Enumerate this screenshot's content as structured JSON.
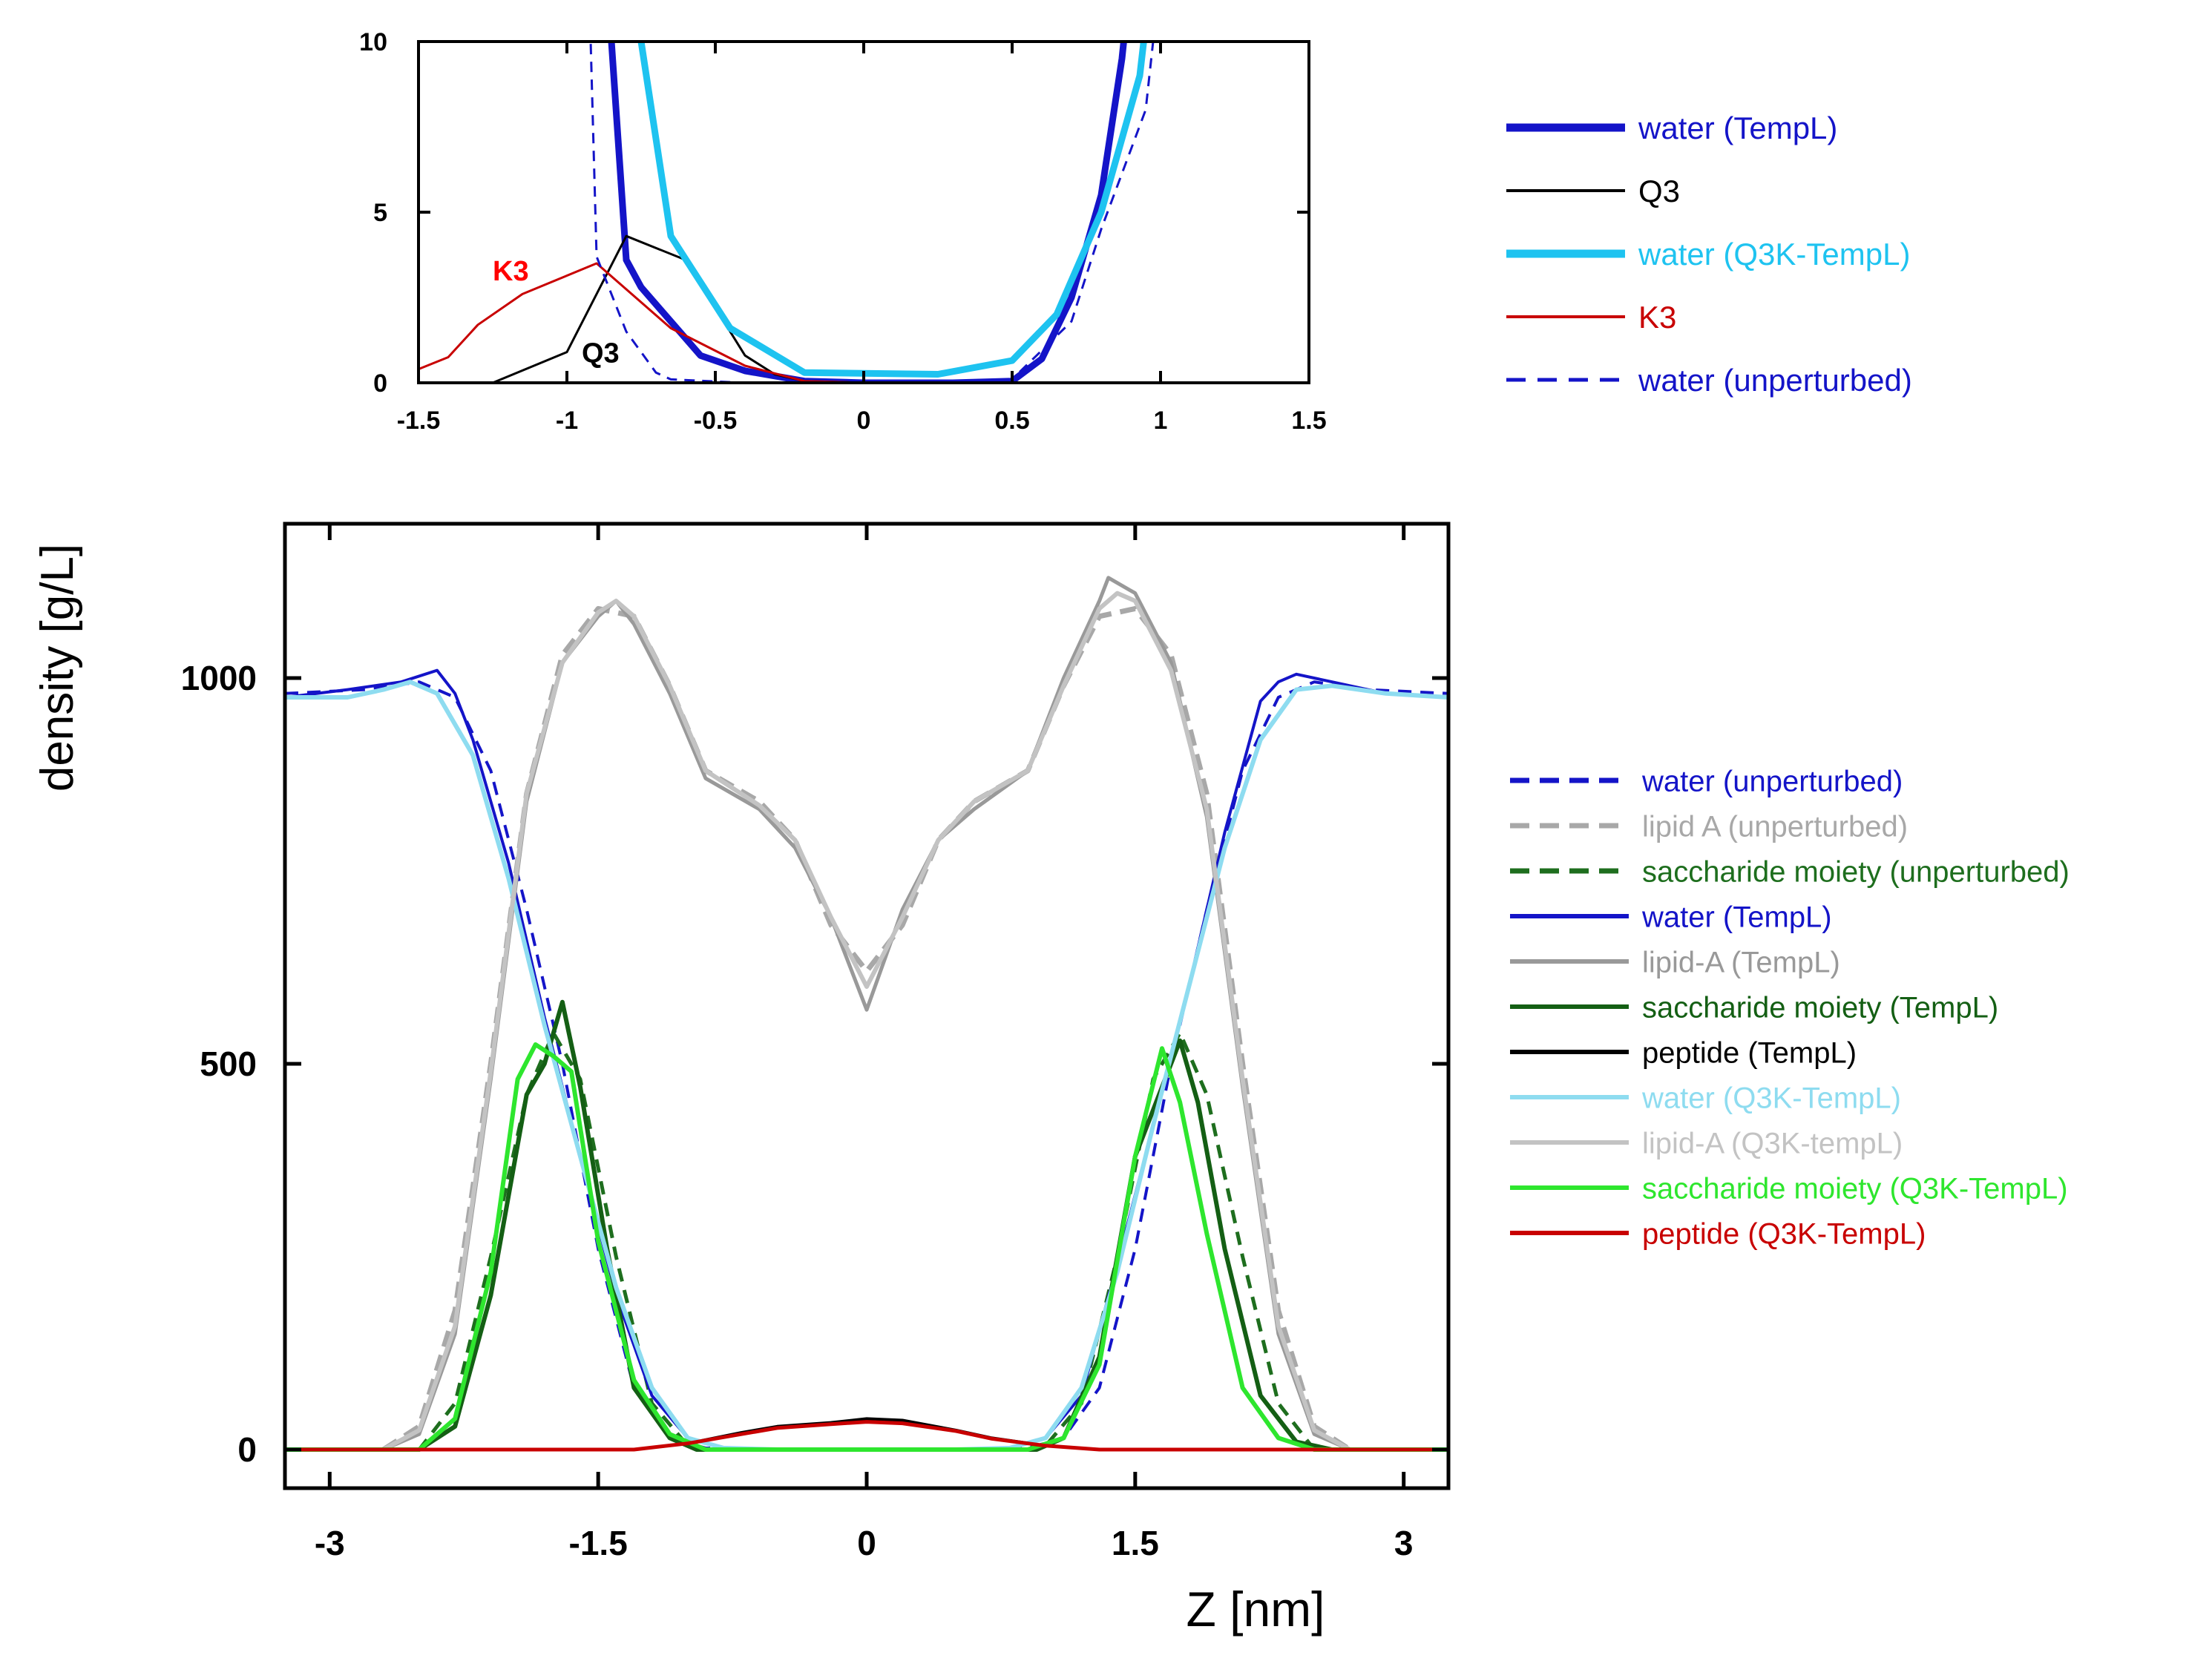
{
  "chart_data": [
    {
      "id": "inset",
      "type": "line",
      "title": "",
      "xlabel": "",
      "ylabel": "",
      "xlim": [
        -1.5,
        1.5
      ],
      "ylim": [
        0,
        10
      ],
      "xticks": [
        -1.5,
        -1,
        -0.5,
        0,
        0.5,
        1,
        1.5
      ],
      "xtick_labels": [
        "-1.5",
        "-1",
        "-0.5",
        "0",
        "0.5",
        "1",
        "1.5"
      ],
      "yticks": [
        0,
        5,
        10
      ],
      "ytick_labels": [
        "0",
        "5",
        "10"
      ],
      "grid": false,
      "legend_position": "right",
      "annotations": [
        {
          "text": "K3",
          "x": -1.25,
          "y": 3.0,
          "color": "#ff0000"
        },
        {
          "text": "Q3",
          "x": -0.95,
          "y": 0.6,
          "color": "#000000"
        }
      ],
      "series": [
        {
          "name": "water (TempL)",
          "color": "#1414c8",
          "width": 9,
          "dash": "",
          "x": [
            -0.88,
            -0.85,
            -0.8,
            -0.75,
            -0.65,
            -0.55,
            -0.4,
            -0.2,
            0,
            0.3,
            0.5,
            0.6,
            0.7,
            0.8,
            0.87,
            0.9
          ],
          "y": [
            12,
            10,
            3.6,
            2.8,
            1.8,
            0.8,
            0.35,
            0.05,
            0,
            0,
            0.05,
            0.7,
            2.5,
            5.5,
            9.5,
            12
          ]
        },
        {
          "name": "Q3",
          "color": "#000000",
          "width": 3,
          "dash": "",
          "x": [
            -1.5,
            -1.25,
            -1.0,
            -0.8,
            -0.6,
            -0.4,
            -0.3,
            -0.2,
            0,
            1.5
          ],
          "y": [
            0,
            0,
            0.9,
            4.3,
            3.6,
            0.8,
            0.25,
            0.05,
            0,
            0
          ]
        },
        {
          "name": "water (Q3K-TempL)",
          "color": "#1ec3f0",
          "width": 9,
          "dash": "",
          "x": [
            -0.8,
            -0.75,
            -0.65,
            -0.45,
            -0.2,
            0.25,
            0.5,
            0.65,
            0.8,
            0.93,
            0.97
          ],
          "y": [
            12,
            10,
            4.3,
            1.6,
            0.3,
            0.25,
            0.65,
            2.0,
            5.0,
            9.0,
            12
          ]
        },
        {
          "name": "K3",
          "color": "#c80000",
          "width": 3,
          "dash": "",
          "x": [
            -1.5,
            -1.4,
            -1.3,
            -1.15,
            -0.9,
            -0.65,
            -0.4,
            -0.2,
            0,
            1.5
          ],
          "y": [
            0.4,
            0.75,
            1.7,
            2.6,
            3.5,
            1.6,
            0.5,
            0.05,
            0,
            0
          ]
        },
        {
          "name": "water (unperturbed)",
          "color": "#1414c8",
          "width": 3,
          "dash": "14,10",
          "x": [
            -0.95,
            -0.92,
            -0.9,
            -0.8,
            -0.7,
            -0.65,
            -0.4,
            0,
            0.5,
            0.7,
            0.8,
            0.95,
            1.0
          ],
          "y": [
            12,
            10,
            3.7,
            1.5,
            0.3,
            0.1,
            0,
            0,
            0.1,
            1.8,
            4.5,
            8.0,
            12
          ]
        }
      ]
    },
    {
      "id": "main",
      "type": "line",
      "title": "",
      "xlabel": "Z [nm]",
      "ylabel": "density [g/L]",
      "xlim": [
        -3.25,
        3.25
      ],
      "ylim": [
        -50,
        1200
      ],
      "xticks": [
        -3,
        -1.5,
        0,
        1.5,
        3
      ],
      "xtick_labels": [
        "-3",
        "-1.5",
        "0",
        "1.5",
        "3"
      ],
      "yticks": [
        0,
        500,
        1000
      ],
      "ytick_labels": [
        "0",
        "500",
        "1000"
      ],
      "grid": false,
      "legend_position": "right",
      "series": [
        {
          "name": "water (unperturbed)",
          "color": "#1414c8",
          "width": 4,
          "dash": "18,12",
          "x": [
            -3.25,
            -2.8,
            -2.5,
            -2.3,
            -2.1,
            -1.9,
            -1.7,
            -1.5,
            -1.3,
            -1.1,
            -0.9,
            -0.5,
            0,
            0.5,
            0.9,
            1.1,
            1.3,
            1.5,
            1.7,
            1.9,
            2.1,
            2.3,
            2.5,
            2.8,
            3.25
          ],
          "y": [
            980,
            985,
            995,
            975,
            880,
            700,
            500,
            260,
            80,
            15,
            2,
            0,
            0,
            0,
            2,
            15,
            80,
            260,
            500,
            700,
            880,
            975,
            995,
            985,
            980
          ]
        },
        {
          "name": "lipid A (unperturbed)",
          "color": "#a8a8a8",
          "width": 7,
          "dash": "22,12",
          "x": [
            -2.7,
            -2.5,
            -2.3,
            -2.1,
            -1.9,
            -1.7,
            -1.5,
            -1.3,
            -1.1,
            -0.9,
            -0.6,
            -0.4,
            -0.2,
            0,
            0.2,
            0.4,
            0.6,
            0.9,
            1.1,
            1.3,
            1.5,
            1.7,
            1.9,
            2.1,
            2.3,
            2.5,
            2.7
          ],
          "y": [
            0,
            30,
            180,
            500,
            850,
            1030,
            1090,
            1080,
            990,
            880,
            840,
            790,
            680,
            620,
            680,
            790,
            840,
            880,
            990,
            1080,
            1090,
            1030,
            850,
            500,
            180,
            30,
            0
          ]
        },
        {
          "name": "saccharide moiety (unperturbed)",
          "color": "#1e6e1e",
          "width": 5,
          "dash": "18,12",
          "x": [
            -3.25,
            -2.5,
            -2.3,
            -2.1,
            -1.9,
            -1.75,
            -1.6,
            -1.4,
            -1.2,
            -1.0,
            -0.9,
            0,
            0.9,
            1.0,
            1.2,
            1.4,
            1.6,
            1.75,
            1.9,
            2.1,
            2.3,
            2.5,
            3.25
          ],
          "y": [
            0,
            0,
            60,
            250,
            460,
            540,
            480,
            250,
            60,
            5,
            0,
            0,
            0,
            5,
            60,
            250,
            480,
            540,
            460,
            250,
            60,
            0,
            0
          ]
        },
        {
          "name": "water (TempL)",
          "color": "#1414c8",
          "width": 4,
          "dash": "",
          "x": [
            -3.25,
            -2.9,
            -2.6,
            -2.4,
            -2.3,
            -2.2,
            -2.0,
            -1.8,
            -1.6,
            -1.4,
            -1.2,
            -1.0,
            -0.8,
            -0.5,
            0,
            0.5,
            0.8,
            1.0,
            1.2,
            1.4,
            1.6,
            1.8,
            2.0,
            2.2,
            2.3,
            2.4,
            2.6,
            2.9,
            3.25
          ],
          "y": [
            975,
            985,
            995,
            1010,
            980,
            920,
            760,
            560,
            380,
            200,
            70,
            15,
            2,
            0,
            0,
            0,
            2,
            15,
            70,
            240,
            420,
            600,
            800,
            970,
            995,
            1005,
            995,
            980,
            975
          ]
        },
        {
          "name": "lipid-A (TempL)",
          "color": "#999999",
          "width": 5,
          "dash": "",
          "x": [
            -2.7,
            -2.5,
            -2.3,
            -2.1,
            -1.9,
            -1.7,
            -1.5,
            -1.4,
            -1.3,
            -1.1,
            -0.9,
            -0.6,
            -0.4,
            -0.2,
            0,
            0.2,
            0.4,
            0.6,
            0.9,
            1.1,
            1.3,
            1.35,
            1.5,
            1.7,
            1.9,
            2.1,
            2.3,
            2.5,
            2.7
          ],
          "y": [
            0,
            20,
            150,
            480,
            840,
            1020,
            1080,
            1100,
            1070,
            980,
            870,
            830,
            780,
            690,
            570,
            700,
            790,
            830,
            880,
            1000,
            1100,
            1130,
            1110,
            1020,
            820,
            470,
            150,
            20,
            0
          ]
        },
        {
          "name": "saccharide moiety (TempL)",
          "color": "#145f14",
          "width": 6,
          "dash": "",
          "x": [
            -3.25,
            -2.5,
            -2.3,
            -2.1,
            -1.9,
            -1.8,
            -1.7,
            -1.6,
            -1.45,
            -1.3,
            -1.1,
            -0.95,
            0,
            0.95,
            1.1,
            1.3,
            1.5,
            1.6,
            1.75,
            1.85,
            2.0,
            2.2,
            2.4,
            2.6,
            3.25
          ],
          "y": [
            0,
            0,
            30,
            200,
            460,
            500,
            580,
            470,
            260,
            80,
            15,
            0,
            0,
            0,
            15,
            120,
            380,
            440,
            530,
            450,
            260,
            70,
            10,
            0,
            0
          ]
        },
        {
          "name": "peptide (TempL)",
          "color": "#000000",
          "width": 4,
          "dash": "",
          "x": [
            -3.25,
            -1.3,
            -1.0,
            -0.7,
            -0.5,
            -0.2,
            0,
            0.2,
            0.5,
            0.7,
            1.0,
            1.3,
            3.25
          ],
          "y": [
            0,
            0,
            8,
            22,
            30,
            35,
            40,
            38,
            25,
            15,
            5,
            0,
            0
          ]
        },
        {
          "name": "water (Q3K-TempL)",
          "color": "#8edcf0",
          "width": 6,
          "dash": "",
          "x": [
            -3.25,
            -2.9,
            -2.7,
            -2.55,
            -2.4,
            -2.2,
            -2.0,
            -1.8,
            -1.6,
            -1.4,
            -1.2,
            -1.0,
            -0.8,
            -0.5,
            0,
            0.5,
            0.8,
            1.0,
            1.2,
            1.4,
            1.6,
            1.8,
            2.0,
            2.2,
            2.4,
            2.6,
            2.9,
            3.25
          ],
          "y": [
            975,
            975,
            985,
            995,
            980,
            900,
            740,
            550,
            380,
            210,
            80,
            15,
            2,
            0,
            0,
            0,
            2,
            15,
            80,
            230,
            420,
            600,
            780,
            920,
            985,
            990,
            980,
            975
          ]
        },
        {
          "name": "lipid-A (Q3K-tempL)",
          "color": "#c3c3c3",
          "width": 6,
          "dash": "",
          "x": [
            -2.7,
            -2.5,
            -2.3,
            -2.1,
            -1.9,
            -1.7,
            -1.5,
            -1.4,
            -1.3,
            -1.1,
            -0.9,
            -0.6,
            -0.4,
            -0.2,
            0,
            0.2,
            0.4,
            0.6,
            0.9,
            1.1,
            1.3,
            1.4,
            1.5,
            1.7,
            1.9,
            2.1,
            2.3,
            2.5,
            2.7
          ],
          "y": [
            0,
            25,
            160,
            490,
            850,
            1020,
            1085,
            1100,
            1080,
            990,
            880,
            835,
            790,
            690,
            600,
            690,
            790,
            840,
            880,
            990,
            1090,
            1110,
            1100,
            1010,
            830,
            480,
            160,
            25,
            0
          ]
        },
        {
          "name": "saccharide moiety (Q3K-TempL)",
          "color": "#2ee62e",
          "width": 6,
          "dash": "",
          "x": [
            -3.25,
            -2.5,
            -2.3,
            -2.1,
            -1.95,
            -1.85,
            -1.75,
            -1.65,
            -1.5,
            -1.3,
            -1.1,
            -0.9,
            0,
            0.9,
            1.1,
            1.3,
            1.5,
            1.65,
            1.75,
            1.9,
            2.1,
            2.3,
            2.5,
            3.25
          ],
          "y": [
            0,
            0,
            40,
            230,
            480,
            525,
            510,
            490,
            270,
            90,
            20,
            0,
            0,
            0,
            15,
            110,
            380,
            520,
            450,
            280,
            80,
            15,
            0,
            0
          ]
        },
        {
          "name": "peptide (Q3K-TempL)",
          "color": "#c80000",
          "width": 5,
          "dash": "",
          "x": [
            -3.25,
            -1.3,
            -1.0,
            -0.7,
            -0.5,
            -0.2,
            0,
            0.2,
            0.5,
            0.7,
            1.0,
            1.3,
            3.25
          ],
          "y": [
            0,
            0,
            8,
            20,
            28,
            33,
            36,
            34,
            24,
            14,
            5,
            0,
            0
          ]
        }
      ]
    }
  ],
  "legends": {
    "inset": [
      {
        "label": "water (TempL)",
        "color": "#1414c8",
        "text_color": "#1414c8",
        "width": 11,
        "dash": ""
      },
      {
        "label": "Q3",
        "color": "#000000",
        "text_color": "#000000",
        "width": 4,
        "dash": ""
      },
      {
        "label": "water (Q3K-TempL)",
        "color": "#1ec3f0",
        "text_color": "#1ec3f0",
        "width": 11,
        "dash": ""
      },
      {
        "label": "K3",
        "color": "#c80000",
        "text_color": "#c80000",
        "width": 4,
        "dash": ""
      },
      {
        "label": "water (unperturbed)",
        "color": "#1414c8",
        "text_color": "#1414c8",
        "width": 5,
        "dash": "26,16"
      }
    ],
    "main": [
      {
        "label": "water (unperturbed)",
        "color": "#1414c8",
        "text_color": "#1414c8",
        "width": 7,
        "dash": "26,14"
      },
      {
        "label": "lipid A (unperturbed)",
        "color": "#a8a8a8",
        "text_color": "#a8a8a8",
        "width": 7,
        "dash": "26,14"
      },
      {
        "label": "saccharide moiety (unperturbed)",
        "color": "#1e6e1e",
        "text_color": "#1e6e1e",
        "width": 7,
        "dash": "26,14"
      },
      {
        "label": "water (TempL)",
        "color": "#1414c8",
        "text_color": "#1414c8",
        "width": 6,
        "dash": ""
      },
      {
        "label": "lipid-A (TempL)",
        "color": "#999999",
        "text_color": "#999999",
        "width": 6,
        "dash": ""
      },
      {
        "label": "saccharide moiety (TempL)",
        "color": "#145f14",
        "text_color": "#145f14",
        "width": 6,
        "dash": ""
      },
      {
        "label": "peptide (TempL)",
        "color": "#000000",
        "text_color": "#000000",
        "width": 6,
        "dash": ""
      },
      {
        "label": "water (Q3K-TempL)",
        "color": "#8edcf0",
        "text_color": "#8edcf0",
        "width": 6,
        "dash": ""
      },
      {
        "label": "lipid-A (Q3K-tempL)",
        "color": "#c3c3c3",
        "text_color": "#c3c3c3",
        "width": 6,
        "dash": ""
      },
      {
        "label": "saccharide moiety (Q3K-TempL)",
        "color": "#2ee62e",
        "text_color": "#2ee62e",
        "width": 6,
        "dash": ""
      },
      {
        "label": "peptide (Q3K-TempL)",
        "color": "#c80000",
        "text_color": "#c80000",
        "width": 6,
        "dash": ""
      }
    ]
  }
}
